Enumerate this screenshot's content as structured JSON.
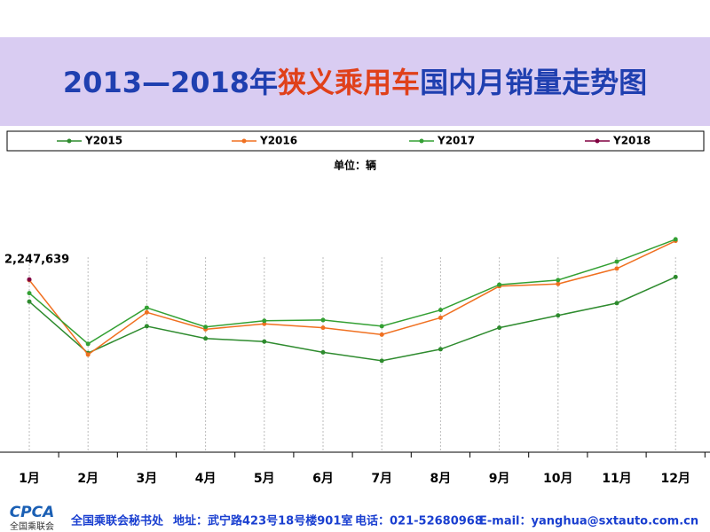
{
  "chart_data": {
    "type": "line",
    "title_parts": [
      "2013—2018年",
      "狭义乘用车",
      "国内月销量走势图"
    ],
    "subtitle": "单位：辆",
    "categories": [
      "1月",
      "2月",
      "3月",
      "4月",
      "5月",
      "6月",
      "7月",
      "8月",
      "9月",
      "10月",
      "11月",
      "12月"
    ],
    "ylim": [
      0,
      3000000
    ],
    "legend": "top",
    "series": [
      {
        "name": "Y2015",
        "color": "#2e8b2e",
        "values": [
          1960000,
          1290000,
          1640000,
          1480000,
          1440000,
          1300000,
          1190000,
          1340000,
          1620000,
          1780000,
          1940000,
          2280000
        ]
      },
      {
        "name": "Y2016",
        "color": "#f07020",
        "values": [
          2240000,
          1270000,
          1820000,
          1600000,
          1670000,
          1620000,
          1530000,
          1750000,
          2160000,
          2190000,
          2390000,
          2750000
        ]
      },
      {
        "name": "Y2017",
        "color": "#33a033",
        "values": [
          2070000,
          1410000,
          1880000,
          1630000,
          1710000,
          1720000,
          1640000,
          1850000,
          2180000,
          2240000,
          2480000,
          2770000
        ]
      },
      {
        "name": "Y2018",
        "color": "#800040",
        "values": [
          2247639,
          null,
          null,
          null,
          null,
          null,
          null,
          null,
          null,
          null,
          null,
          null
        ],
        "value_labels": [
          "2,247,639",
          null,
          null,
          null,
          null,
          null,
          null,
          null,
          null,
          null,
          null,
          null
        ]
      }
    ]
  },
  "footer": {
    "logo": "CPCA",
    "logo_sub": "全国乘联会",
    "org": "全国乘联会秘书处",
    "address": "地址：武宁路423号18号楼901室",
    "phone": "电话：021-52680968",
    "email": "E-mail：yanghua@sxtauto.com.cn"
  }
}
